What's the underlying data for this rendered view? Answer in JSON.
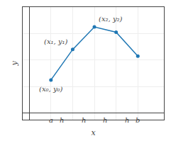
{
  "chart_data": {
    "type": "line",
    "x": [
      1,
      2,
      3,
      4,
      5
    ],
    "values": [
      2.5,
      4.8,
      6.5,
      6.1,
      4.3
    ],
    "marker": "circle",
    "xlim": [
      -0.3,
      6.2
    ],
    "ylim": [
      -0.5,
      8.0
    ],
    "xticks": [
      1,
      2,
      3,
      4,
      5
    ],
    "yticks": [
      2,
      4,
      6,
      8
    ],
    "grid": true,
    "tick_labels": false,
    "x_label": "x",
    "y_label": "y",
    "annotations": [
      {
        "text": "(x₀, y₀)",
        "x": 1,
        "y": 2.5
      },
      {
        "text": "(x₁, y₁)",
        "x": 2,
        "y": 4.8
      },
      {
        "text": "(x₂, y₂)",
        "x": 3,
        "y": 6.5
      },
      {
        "text": "a",
        "x": 1,
        "y": 0
      },
      {
        "text": "b",
        "x": 5,
        "y": 0
      },
      {
        "text": "h",
        "x": 1.5,
        "y": 0
      },
      {
        "text": "h",
        "x": 2.5,
        "y": 0
      },
      {
        "text": "h",
        "x": 3.5,
        "y": 0
      },
      {
        "text": "h",
        "x": 4.5,
        "y": 0
      }
    ]
  }
}
